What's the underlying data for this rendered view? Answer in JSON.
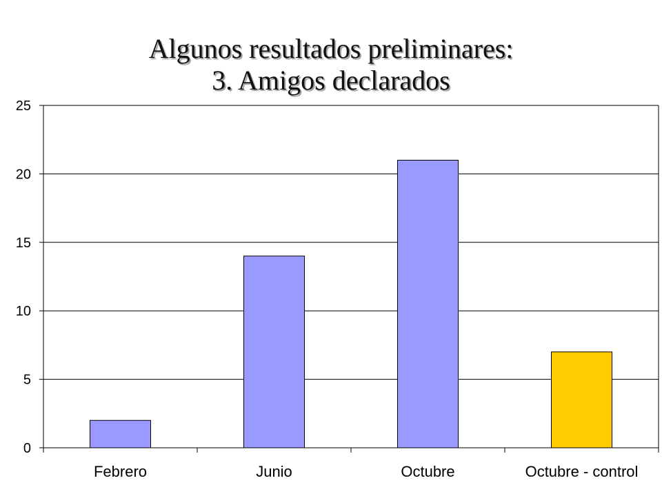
{
  "slide": {
    "title_line1": "Algunos resultados preliminares:",
    "title_line2": "3. Amigos declarados"
  },
  "colors": {
    "bar_default": "#9999ff",
    "bar_highlight": "#ffcc00",
    "bar_outline": "#000000",
    "gridline": "#000000"
  },
  "chart_data": {
    "type": "bar",
    "categories": [
      "Febrero",
      "Junio",
      "Octubre",
      "Octubre - control"
    ],
    "values": [
      2,
      14,
      21,
      7
    ],
    "highlight_index": 3,
    "ylim": [
      0,
      25
    ],
    "yticks": [
      0,
      5,
      10,
      15,
      20,
      25
    ],
    "grid": true,
    "legend": "none",
    "xlabel": "",
    "ylabel": ""
  }
}
